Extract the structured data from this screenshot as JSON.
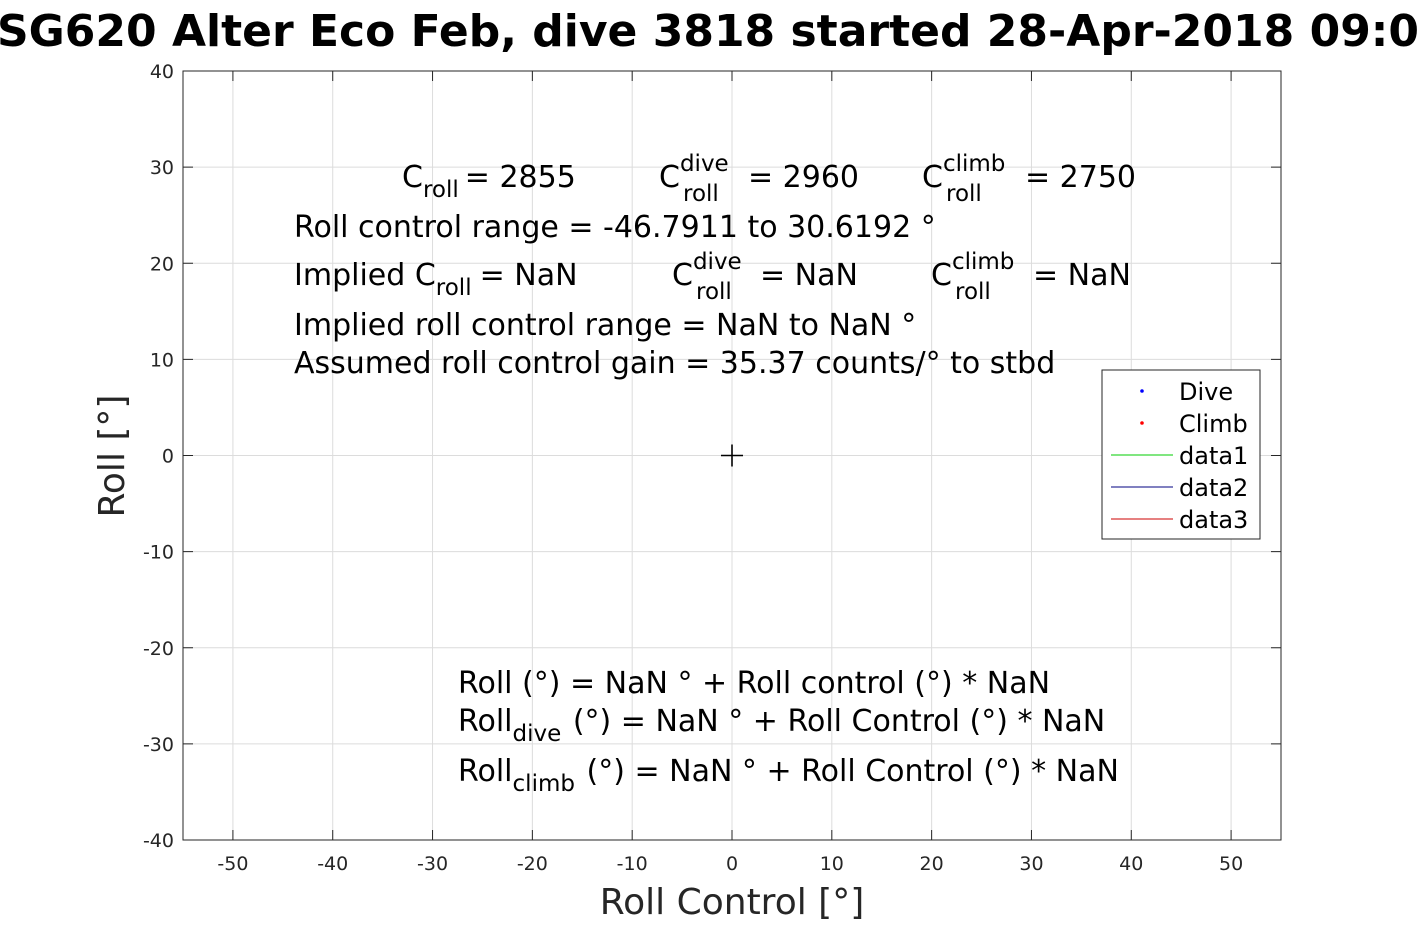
{
  "chart_data": {
    "type": "scatter",
    "title": "SG620 Alter Eco Feb, dive 3818 started 28-Apr-2018 09:0",
    "xlabel": "Roll Control [°]",
    "ylabel": "Roll [°]",
    "xlim": [
      -55,
      55
    ],
    "ylim": [
      -40,
      40
    ],
    "xticks": [
      -50,
      -40,
      -30,
      -20,
      -10,
      0,
      10,
      20,
      30,
      40,
      50
    ],
    "yticks": [
      -40,
      -30,
      -20,
      -10,
      0,
      10,
      20,
      30,
      40
    ],
    "grid": true,
    "legend_position": "right",
    "series": [
      {
        "name": "Dive",
        "kind": "points",
        "color": "#0000ff",
        "points": []
      },
      {
        "name": "Climb",
        "kind": "points",
        "color": "#ff0000",
        "points": []
      },
      {
        "name": "data1",
        "kind": "line",
        "color": "#00cc00",
        "points": []
      },
      {
        "name": "data2",
        "kind": "line",
        "color": "#000080",
        "points": []
      },
      {
        "name": "data3",
        "kind": "line",
        "color": "#cc0000",
        "points": []
      }
    ],
    "center_marker": {
      "x": 0,
      "y": 0,
      "symbol": "+"
    },
    "annotations": {
      "c_roll_label": "C",
      "c_roll_sub": "roll",
      "c_roll_value": "= 2855",
      "c_dive_sup": "dive",
      "c_dive_sub": "roll",
      "c_dive_value": "= 2960",
      "c_climb_sup": "climb",
      "c_climb_sub": "roll",
      "c_climb_value": "= 2750",
      "range_line": "Roll control range = -46.7911 to 30.6192 °",
      "implied_prefix": "Implied C",
      "implied_sub": "roll",
      "implied_value": "=  NaN",
      "implied_dive_sup": "dive",
      "implied_dive_sub": "roll",
      "implied_dive_value": "=  NaN",
      "implied_climb_sup": "climb",
      "implied_climb_sub": "roll",
      "implied_climb_value": "=  NaN",
      "implied_range_line": "Implied roll control range = NaN to NaN °",
      "gain_line": "Assumed roll control gain = 35.37 counts/° to stbd",
      "fit_line": "Roll (°) = NaN ° + Roll control (°) * NaN",
      "fit_dive_prefix": "Roll",
      "fit_dive_sub": "dive",
      "fit_dive_rest": " (°) = NaN ° + Roll Control (°) * NaN",
      "fit_climb_prefix": "Roll",
      "fit_climb_sub": "climb",
      "fit_climb_rest": " (°) = NaN ° + Roll Control (°) * NaN"
    }
  }
}
